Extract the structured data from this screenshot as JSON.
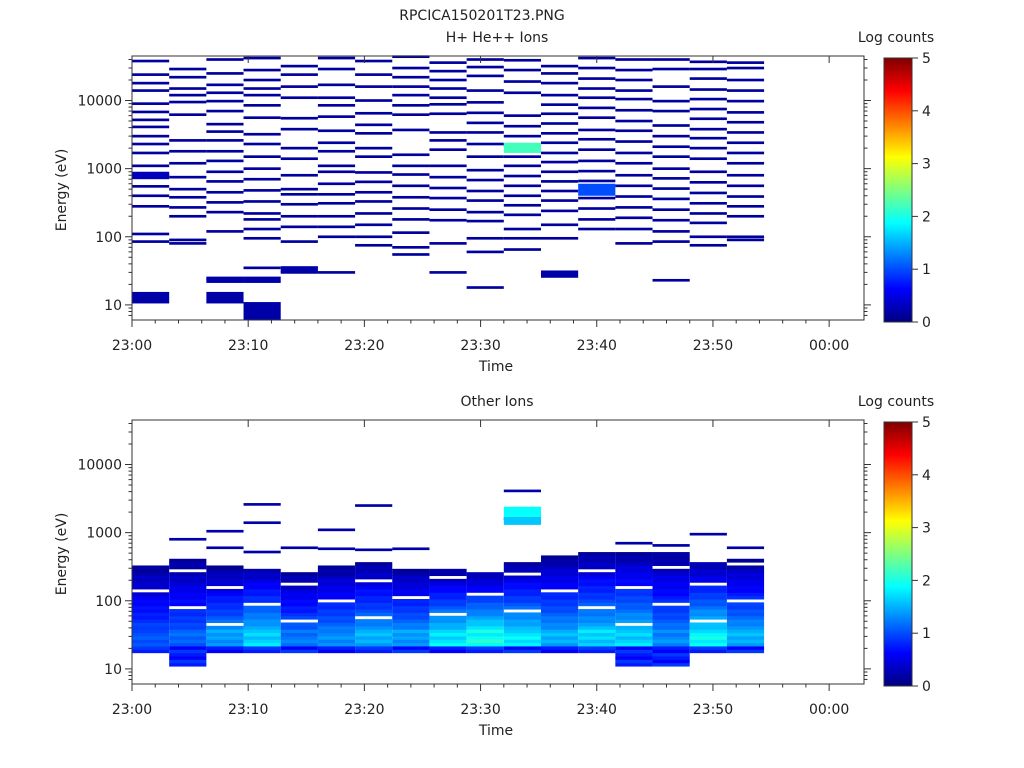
{
  "figure": {
    "title": "RPCICA150201T23.PNG"
  },
  "colors": {
    "colormap": [
      "#00007f",
      "#0000ff",
      "#007fff",
      "#00ffff",
      "#7fff7f",
      "#ffff00",
      "#ff7f00",
      "#ff0000",
      "#7f0000"
    ]
  },
  "chart_data": [
    {
      "type": "heatmap",
      "title": "H+ He++ Ions",
      "xlabel": "Time",
      "ylabel": "Energy (eV)",
      "y_scale": "log",
      "ylim": [
        6,
        45000
      ],
      "x_ticks": [
        "23:00",
        "23:10",
        "23:20",
        "23:30",
        "23:40",
        "23:50",
        "00:00"
      ],
      "y_ticks": [
        "10",
        "100",
        "1000",
        "10000"
      ],
      "colorbar": {
        "label": "Log counts",
        "ticks": [
          "0",
          "1",
          "2",
          "3",
          "4",
          "5"
        ],
        "range": [
          0,
          5
        ]
      },
      "time_bins": [
        "23:00:00",
        "23:03:12",
        "23:06:24",
        "23:09:36",
        "23:12:48",
        "23:16:00",
        "23:19:12",
        "23:22:24",
        "23:25:36",
        "23:28:48",
        "23:32:00",
        "23:35:12",
        "23:38:24",
        "23:41:36",
        "23:44:48",
        "23:48:00",
        "23:51:12"
      ],
      "cells": [
        {
          "t": 0,
          "e": [
            38000,
            24000,
            18000,
            14000,
            9000,
            6800,
            5200,
            4100,
            3000,
            2300,
            1700,
            1100,
            800,
            550,
            400,
            280,
            110,
            85
          ]
        },
        {
          "t": 0,
          "e_wide": [
            [
              10.5,
              15.5
            ]
          ],
          "v": 0.2
        },
        {
          "t": 0,
          "e_wide": [
            [
              700,
              900
            ]
          ],
          "v": 0.3
        },
        {
          "t": 1,
          "e": [
            29000,
            22000,
            15000,
            12000,
            9500,
            6200,
            2600,
            1800,
            1200,
            750,
            500,
            380,
            270,
            200,
            90,
            80
          ]
        },
        {
          "t": 2,
          "e": [
            40000,
            25000,
            17000,
            13000,
            9800,
            7000,
            4500,
            3500,
            2600,
            1800,
            1300,
            900,
            650,
            450,
            320,
            230,
            120,
            24
          ]
        },
        {
          "t": 2,
          "e_wide": [
            [
              10.5,
              15.5
            ],
            [
              21,
              26
            ]
          ],
          "v": 0.2
        },
        {
          "t": 3,
          "e": [
            42000,
            28000,
            20000,
            15000,
            12000,
            8500,
            5600,
            3200,
            2300,
            1500,
            1000,
            700,
            480,
            330,
            220,
            180,
            130,
            95,
            35
          ]
        },
        {
          "t": 3,
          "e_wide": [
            [
              6,
              11
            ],
            [
              21,
              26
            ]
          ],
          "v": 0.2
        },
        {
          "t": 4,
          "e": [
            32000,
            24000,
            16000,
            11000,
            5500,
            3800,
            2000,
            1400,
            800,
            500,
            420,
            300,
            200,
            140,
            85,
            30
          ]
        },
        {
          "t": 4,
          "e_wide": [
            [
              30,
              37
            ]
          ],
          "v": 0.2
        },
        {
          "t": 5,
          "e": [
            42000,
            29000,
            17000,
            11000,
            8500,
            5800,
            3600,
            2400,
            1800,
            1100,
            900,
            600,
            420,
            310,
            200,
            140,
            100,
            30
          ]
        },
        {
          "t": 6,
          "e": [
            38000,
            24000,
            16000,
            10000,
            6500,
            4400,
            3300,
            2000,
            1500,
            880,
            640,
            450,
            330,
            220,
            150,
            100,
            75
          ]
        },
        {
          "t": 7,
          "e": [
            44000,
            30000,
            22000,
            16000,
            12000,
            8500,
            6200,
            3700,
            1600,
            1100,
            820,
            560,
            380,
            260,
            180,
            115,
            70,
            55
          ]
        },
        {
          "t": 8,
          "e": [
            36000,
            27000,
            20000,
            15000,
            11000,
            8800,
            6400,
            3400,
            2600,
            1900,
            1100,
            750,
            520,
            370,
            250,
            175,
            80,
            30
          ]
        },
        {
          "t": 9,
          "e": [
            40000,
            31000,
            23000,
            14000,
            9400,
            6600,
            4700,
            3400,
            2300,
            1500,
            950,
            680,
            470,
            340,
            230,
            170,
            95,
            60,
            18
          ]
        },
        {
          "t": 10,
          "e": [
            39000,
            28000,
            19000,
            13000,
            6000,
            4200,
            3000,
            2200,
            1500,
            1100,
            780,
            560,
            400,
            290,
            210,
            130,
            95,
            65
          ]
        },
        {
          "t": 10,
          "e_wide": [
            [
              1700,
              2400
            ]
          ],
          "v": 2.2
        },
        {
          "t": 11,
          "e": [
            32000,
            25000,
            18000,
            12000,
            8700,
            6400,
            4600,
            3300,
            2400,
            1700,
            1250,
            900,
            650,
            470,
            340,
            240,
            150,
            95
          ]
        },
        {
          "t": 11,
          "e_wide": [
            [
              25,
              32
            ]
          ],
          "v": 0.2
        },
        {
          "t": 12,
          "e": [
            42000,
            30000,
            21000,
            15000,
            11000,
            7800,
            5600,
            3700,
            2700,
            1900,
            1300,
            920,
            660,
            370,
            260,
            180,
            130
          ]
        },
        {
          "t": 12,
          "e_wide": [
            [
              400,
              600
            ]
          ],
          "v": 1.0
        },
        {
          "t": 13,
          "e": [
            40000,
            28000,
            20000,
            14000,
            10500,
            7200,
            5000,
            3600,
            2500,
            1700,
            1200,
            800,
            560,
            390,
            270,
            190,
            130,
            80
          ]
        },
        {
          "t": 14,
          "e": [
            40000,
            29000,
            16000,
            9800,
            7000,
            4300,
            3000,
            2100,
            1500,
            1000,
            720,
            510,
            360,
            250,
            175,
            120,
            85,
            23
          ]
        },
        {
          "t": 15,
          "e": [
            37000,
            29000,
            21000,
            14500,
            10500,
            7500,
            5400,
            3800,
            2800,
            2000,
            1400,
            900,
            630,
            440,
            310,
            220,
            160,
            100,
            75
          ]
        },
        {
          "t": 16,
          "e": [
            36000,
            30000,
            20000,
            14000,
            9800,
            6700,
            4800,
            3400,
            2400,
            1700,
            1200,
            800,
            560,
            390,
            280,
            200,
            100,
            90
          ]
        }
      ]
    },
    {
      "type": "heatmap",
      "title": "Other Ions",
      "xlabel": "Time",
      "ylabel": "Energy (eV)",
      "y_scale": "log",
      "ylim": [
        6,
        45000
      ],
      "x_ticks": [
        "23:00",
        "23:10",
        "23:20",
        "23:30",
        "23:40",
        "23:50",
        "00:00"
      ],
      "y_ticks": [
        "10",
        "100",
        "1000",
        "10000"
      ],
      "colorbar": {
        "label": "Log counts",
        "ticks": [
          "0",
          "1",
          "2",
          "3",
          "4",
          "5"
        ],
        "range": [
          0,
          5
        ]
      },
      "time_bins": [
        "23:00:00",
        "23:03:12",
        "23:06:24",
        "23:09:36",
        "23:12:48",
        "23:16:00",
        "23:19:12",
        "23:22:24",
        "23:25:36",
        "23:28:48",
        "23:32:00",
        "23:35:12",
        "23:38:24",
        "23:41:36",
        "23:44:48",
        "23:48:00",
        "23:51:12"
      ],
      "profile_max_eV": [
        360,
        420,
        330,
        360,
        280,
        350,
        370,
        310,
        300,
        280,
        380,
        480,
        520,
        550,
        520,
        400,
        430
      ],
      "bottom_eV": [
        17,
        11,
        17,
        17,
        17,
        17,
        17,
        17,
        17,
        17,
        17,
        17,
        17,
        11,
        11,
        17,
        17
      ],
      "band_peak_log": [
        1.1,
        1.2,
        1.5,
        1.8,
        1.3,
        1.4,
        1.6,
        1.5,
        1.9,
        2.1,
        1.9,
        1.6,
        1.8,
        1.8,
        1.4,
        2.0,
        1.6
      ],
      "isolated": [
        {
          "t": 1,
          "e": [
            800
          ]
        },
        {
          "t": 2,
          "e": [
            1050,
            600
          ]
        },
        {
          "t": 3,
          "e": [
            2600,
            1400,
            520
          ]
        },
        {
          "t": 4,
          "e": [
            600
          ]
        },
        {
          "t": 5,
          "e": [
            1100,
            580
          ]
        },
        {
          "t": 6,
          "e": [
            2500,
            560
          ]
        },
        {
          "t": 7,
          "e": [
            580
          ]
        },
        {
          "t": 10,
          "e": [
            4100,
            1600
          ]
        },
        {
          "t": 13,
          "e": [
            700
          ]
        },
        {
          "t": 14,
          "e": [
            650
          ]
        },
        {
          "t": 15,
          "e": [
            950
          ]
        },
        {
          "t": 16,
          "e": [
            600
          ]
        }
      ],
      "hot_cells": [
        {
          "t": 10,
          "lo": 1700,
          "hi": 2400,
          "v": 1.9
        },
        {
          "t": 10,
          "lo": 1300,
          "hi": 1700,
          "v": 1.6
        }
      ]
    }
  ]
}
